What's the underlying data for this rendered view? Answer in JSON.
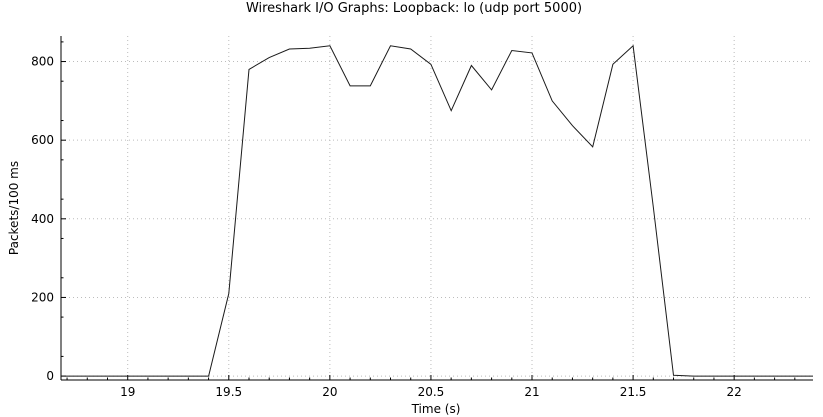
{
  "chart_data": {
    "type": "line",
    "title": "Wireshark I/O Graphs: Loopback: lo (udp port 5000)",
    "xlabel": "Time (s)",
    "ylabel": "Packets/100 ms",
    "xlim": [
      18.67,
      22.39
    ],
    "ylim": [
      -10,
      865
    ],
    "xticks": [
      19,
      19.5,
      20,
      20.5,
      21,
      21.5,
      22
    ],
    "xtick_labels": [
      "19",
      "19.5",
      "20",
      "20.5",
      "21",
      "21.5",
      "22"
    ],
    "yticks": [
      0,
      200,
      400,
      600,
      800
    ],
    "ytick_labels": [
      "0",
      "200",
      "400",
      "600",
      "800"
    ],
    "grid": true,
    "legend": "none",
    "series": [
      {
        "color": "#1a1a1a",
        "x": [
          18.67,
          19.4,
          19.5,
          19.6,
          19.7,
          19.8,
          19.9,
          20.0,
          20.1,
          20.2,
          20.3,
          20.4,
          20.5,
          20.6,
          20.7,
          20.8,
          20.9,
          21.0,
          21.1,
          21.2,
          21.3,
          21.4,
          21.5,
          21.6,
          21.7,
          21.8,
          22.39
        ],
        "y": [
          0,
          0,
          210,
          780,
          810,
          832,
          834,
          840,
          738,
          738,
          840,
          832,
          793,
          675,
          790,
          728,
          828,
          822,
          700,
          637,
          583,
          793,
          840,
          430,
          2,
          0,
          0
        ]
      }
    ]
  }
}
